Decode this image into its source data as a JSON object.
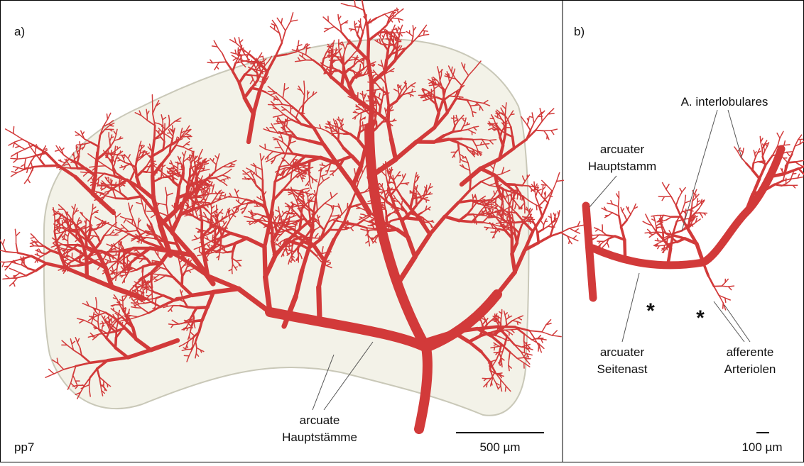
{
  "panel_a": {
    "label": "a)",
    "sample": "pp7",
    "annotation": [
      "arcuate",
      "Hauptstämme"
    ],
    "scale_bar": "500 µm"
  },
  "panel_b": {
    "label": "b)",
    "interlobular": "A. interlobulares",
    "main_trunk": [
      "arcuater",
      "Hauptstamm"
    ],
    "side_branch": [
      "arcuater",
      "Seitenast"
    ],
    "afferent": [
      "afferente",
      "Arteriolen"
    ],
    "markers": [
      "*",
      "*"
    ],
    "scale_bar": "100 µm"
  }
}
